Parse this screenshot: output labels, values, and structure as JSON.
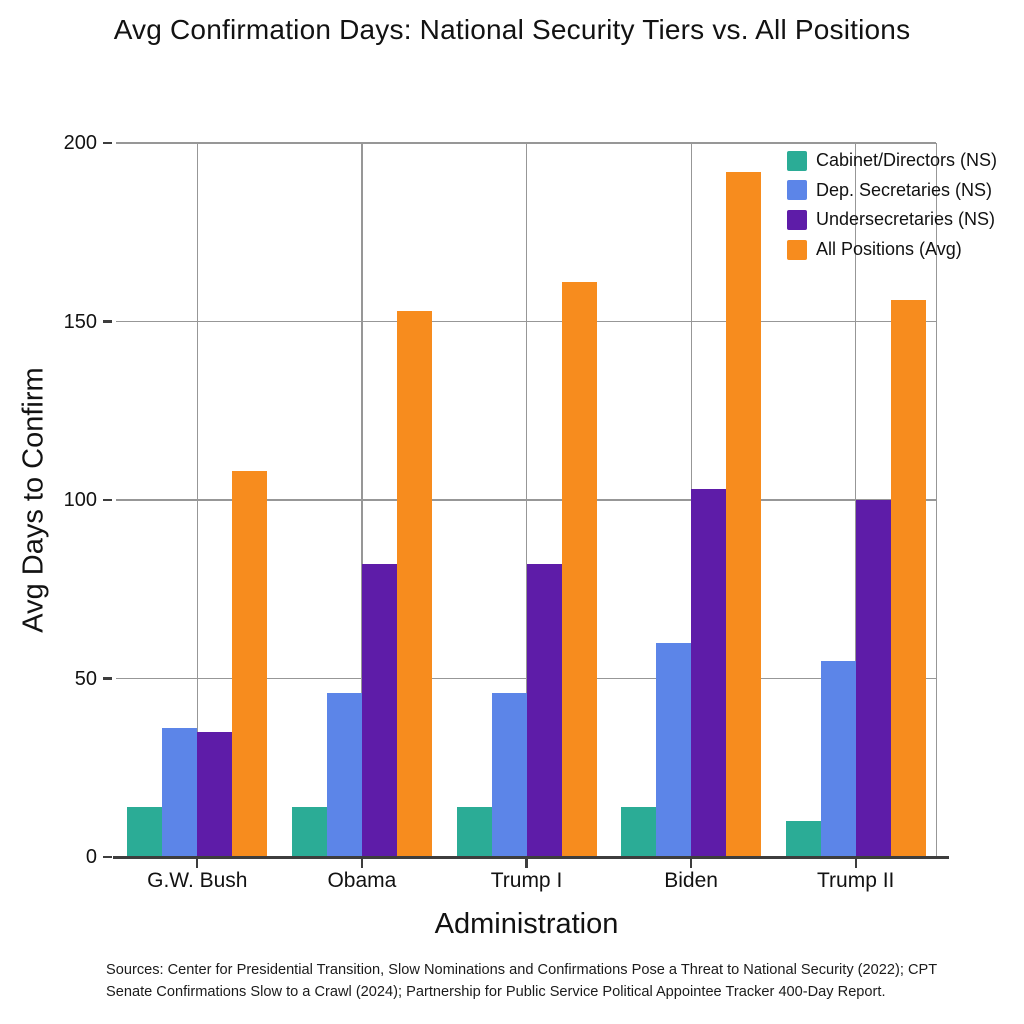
{
  "chart_data": {
    "type": "bar",
    "title": "Avg Confirmation Days: National Security Tiers vs. All Positions",
    "xlabel": "Administration",
    "ylabel": "Avg Days to Confirm",
    "categories": [
      "G.W. Bush",
      "Obama",
      "Trump I",
      "Biden",
      "Trump II"
    ],
    "series": [
      {
        "name": "Cabinet/Directors (NS)",
        "color": "#2BAC96",
        "values": [
          14,
          14,
          14,
          14,
          10
        ]
      },
      {
        "name": "Dep. Secretaries (NS)",
        "color": "#5C85E8",
        "values": [
          36,
          46,
          46,
          60,
          55
        ]
      },
      {
        "name": "Undersecretaries (NS)",
        "color": "#5E1CA8",
        "values": [
          35,
          82,
          82,
          103,
          100
        ]
      },
      {
        "name": "All Positions (Avg)",
        "color": "#F78C1E",
        "values": [
          108,
          153,
          161,
          192,
          156
        ]
      }
    ],
    "ylim": [
      0,
      200
    ],
    "yticks": [
      0,
      50,
      100,
      150,
      200
    ],
    "grid": true,
    "legend_position": "top-right"
  },
  "source_note": {
    "line1": "Sources: Center for Presidential Transition, Slow Nominations and Confirmations Pose a Threat to National Security (2022); CPT",
    "line2": "Senate Confirmations Slow to a Crawl (2024); Partnership for Public Service Political Appointee Tracker 400-Day Report."
  },
  "colors": {
    "gridline": "#979797",
    "axis": "#3d3d3d",
    "text": "#121212"
  }
}
